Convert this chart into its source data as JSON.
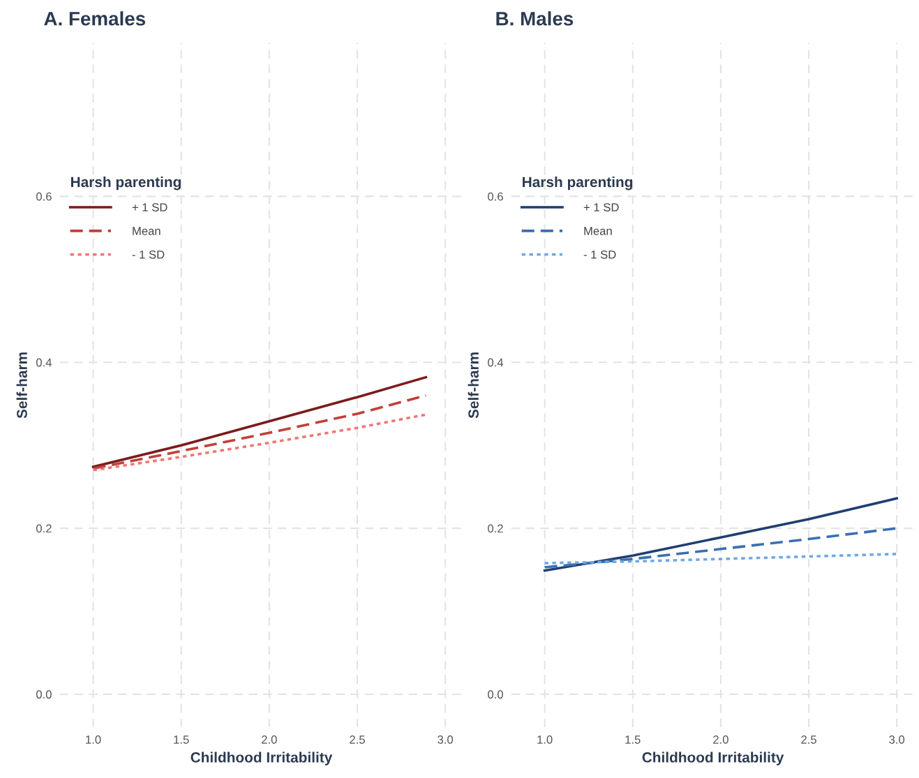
{
  "chart_data": [
    {
      "type": "line",
      "title": "A. Females",
      "xlabel": "Childhood Irritability",
      "ylabel": "Self-harm",
      "legend_title": "Harsh parenting",
      "legend": "top left",
      "grid": true,
      "xlim": [
        0.81,
        3.1
      ],
      "ylim": [
        -0.04,
        0.785
      ],
      "xticks": [
        {
          "value": 1.0,
          "label": "1.0"
        },
        {
          "value": 1.5,
          "label": "1.5"
        },
        {
          "value": 2.0,
          "label": "2.0"
        },
        {
          "value": 2.5,
          "label": "2.5"
        },
        {
          "value": 3.0,
          "label": "3.0"
        }
      ],
      "yticks": [
        {
          "value": 0.0,
          "label": "0.0"
        },
        {
          "value": 0.2,
          "label": "0.2"
        },
        {
          "value": 0.4,
          "label": "0.4"
        },
        {
          "value": 0.6,
          "label": "0.6"
        }
      ],
      "x": [
        1.0,
        1.5,
        2.0,
        2.5,
        2.89
      ],
      "series": [
        {
          "name": "+ 1 SD",
          "color": "#7b1c1c",
          "line_style": "solid",
          "values": [
            0.274,
            0.3,
            0.329,
            0.358,
            0.382
          ]
        },
        {
          "name": "Mean",
          "color": "#c0403a",
          "line_style": "dashed",
          "values": [
            0.272,
            0.293,
            0.315,
            0.338,
            0.36
          ]
        },
        {
          "name": "- 1 SD",
          "color": "#f07575",
          "line_style": "dotted",
          "values": [
            0.27,
            0.286,
            0.303,
            0.321,
            0.337
          ]
        }
      ]
    },
    {
      "type": "line",
      "title": "B. Males",
      "xlabel": "Childhood Irritability",
      "ylabel": "Self-harm",
      "legend_title": "Harsh parenting",
      "legend": "top left",
      "grid": true,
      "xlim": [
        0.81,
        3.1
      ],
      "ylim": [
        -0.04,
        0.785
      ],
      "xticks": [
        {
          "value": 1.0,
          "label": "1.0"
        },
        {
          "value": 1.5,
          "label": "1.5"
        },
        {
          "value": 2.0,
          "label": "2.0"
        },
        {
          "value": 2.5,
          "label": "2.5"
        },
        {
          "value": 3.0,
          "label": "3.0"
        }
      ],
      "yticks": [
        {
          "value": 0.0,
          "label": "0.0"
        },
        {
          "value": 0.2,
          "label": "0.2"
        },
        {
          "value": 0.4,
          "label": "0.4"
        },
        {
          "value": 0.6,
          "label": "0.6"
        }
      ],
      "x": [
        1.0,
        1.5,
        2.0,
        2.5,
        3.0
      ],
      "series": [
        {
          "name": "+ 1 SD",
          "color": "#1f3f72",
          "line_style": "solid",
          "values": [
            0.149,
            0.167,
            0.189,
            0.211,
            0.236
          ]
        },
        {
          "name": "Mean",
          "color": "#3a6fb0",
          "line_style": "dashed",
          "values": [
            0.153,
            0.163,
            0.175,
            0.187,
            0.2
          ]
        },
        {
          "name": "- 1 SD",
          "color": "#6fa8e6",
          "line_style": "dotted",
          "values": [
            0.158,
            0.16,
            0.163,
            0.166,
            0.169
          ]
        }
      ]
    }
  ]
}
